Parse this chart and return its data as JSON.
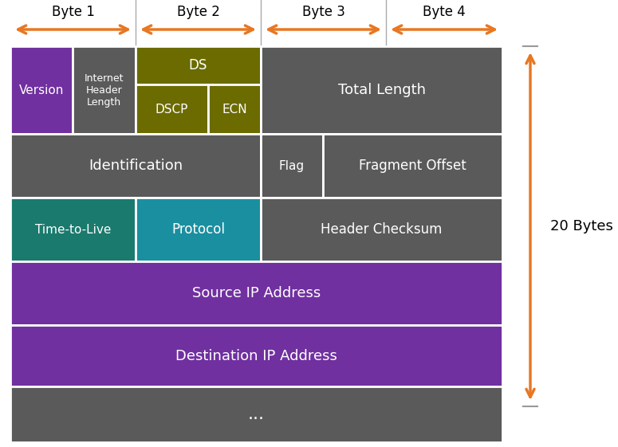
{
  "background": "#ffffff",
  "colors": {
    "purple_dark": "#7030a0",
    "gray_dark": "#5a5a5a",
    "olive": "#6b6b00",
    "teal": "#1a7a6e",
    "cyan": "#1a8fa0",
    "white": "#ffffff",
    "orange": "#e87722",
    "gray_line": "#999999"
  },
  "byte_labels": [
    "Byte 1",
    "Byte 2",
    "Byte 3",
    "Byte 4"
  ],
  "twenty_bytes_label": "20 Bytes",
  "figsize": [
    7.75,
    5.61
  ],
  "dpi": 100
}
